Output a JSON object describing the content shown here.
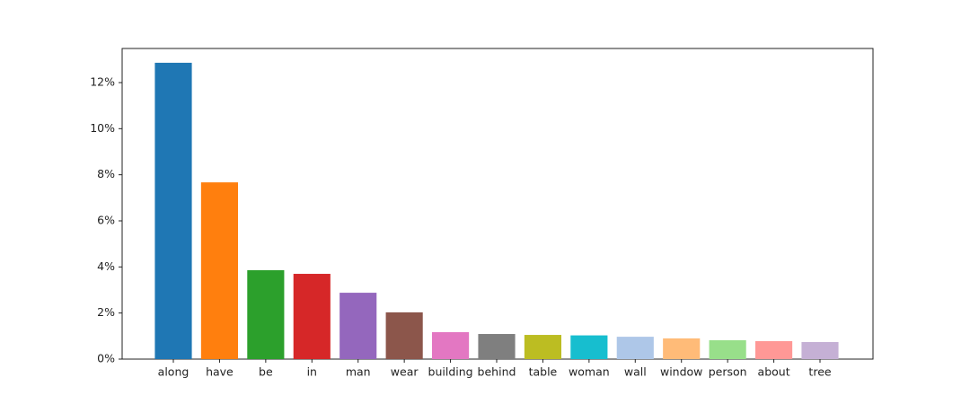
{
  "chart_data": {
    "type": "bar",
    "categories": [
      "along",
      "have",
      "be",
      "in",
      "man",
      "wear",
      "building",
      "behind",
      "table",
      "woman",
      "wall",
      "window",
      "person",
      "about",
      "tree"
    ],
    "values": [
      12.86,
      7.67,
      3.86,
      3.7,
      2.88,
      2.03,
      1.17,
      1.09,
      1.05,
      1.03,
      0.97,
      0.9,
      0.82,
      0.78,
      0.74
    ],
    "colors": [
      "#1f77b4",
      "#ff7f0e",
      "#2ca02c",
      "#d62728",
      "#9467bd",
      "#8c564b",
      "#e377c2",
      "#7f7f7f",
      "#bcbd22",
      "#17becf",
      "#aec7e8",
      "#ffbb78",
      "#98df8a",
      "#ff9896",
      "#c5b0d5"
    ],
    "ylim": [
      0,
      13.48
    ],
    "yticks": [
      {
        "value": 0,
        "label": "0%"
      },
      {
        "value": 2,
        "label": "2%"
      },
      {
        "value": 4,
        "label": "4%"
      },
      {
        "value": 6,
        "label": "6%"
      },
      {
        "value": 8,
        "label": "8%"
      },
      {
        "value": 10,
        "label": "10%"
      },
      {
        "value": 12,
        "label": "12%"
      }
    ],
    "grid": false
  }
}
